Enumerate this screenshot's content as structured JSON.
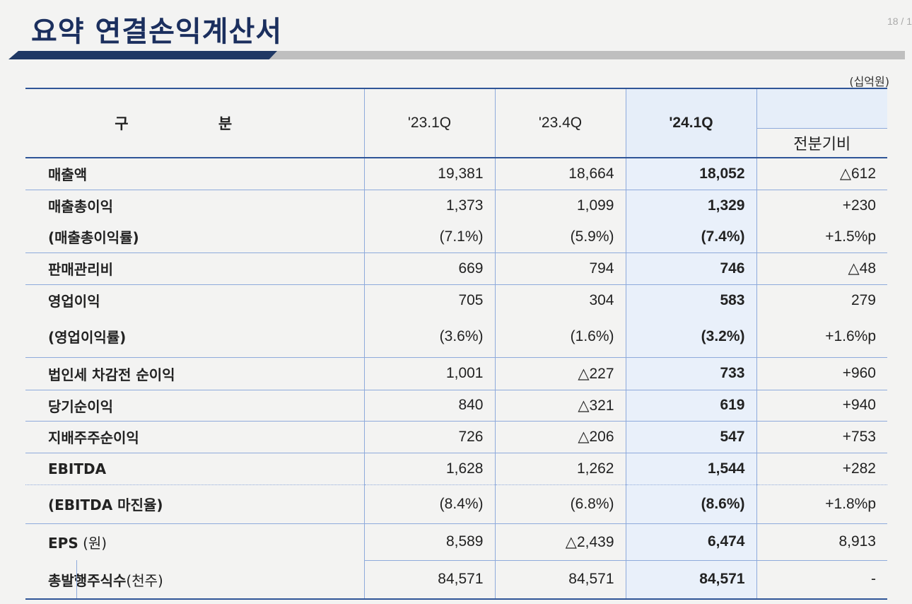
{
  "header": {
    "title": "요약 연결손익계산서",
    "page_number": "18 / 1",
    "unit": "(십억원)"
  },
  "table": {
    "header": {
      "category": "구 분",
      "periods": [
        "'23.1Q",
        "'23.4Q",
        "'24.1Q"
      ],
      "change": "전분기비"
    },
    "rows": [
      {
        "label": "매출액",
        "v1": "19,381",
        "v2": "18,664",
        "v3": "18,052",
        "chg": "△612"
      },
      {
        "label": "매출총이익",
        "v1": "1,373",
        "v2": "1,099",
        "v3": "1,329",
        "chg": "+230"
      },
      {
        "label": "(매출총이익률)",
        "v1": "(7.1%)",
        "v2": "(5.9%)",
        "v3": "(7.4%)",
        "chg": "+1.5%p"
      },
      {
        "label": "판매관리비",
        "v1": "669",
        "v2": "794",
        "v3": "746",
        "chg": "△48"
      },
      {
        "label": "영업이익",
        "v1": "705",
        "v2": "304",
        "v3": "583",
        "chg": "279"
      },
      {
        "label": "(영업이익률)",
        "v1": "(3.6%)",
        "v2": "(1.6%)",
        "v3": "(3.2%)",
        "chg": "+1.6%p"
      },
      {
        "label": "법인세 차감전 순이익",
        "v1": "1,001",
        "v2": "△227",
        "v3": "733",
        "chg": "+960"
      },
      {
        "label": "당기순이익",
        "v1": "840",
        "v2": "△321",
        "v3": "619",
        "chg": "+940"
      },
      {
        "label": "지배주주순이익",
        "v1": "726",
        "v2": "△206",
        "v3": "547",
        "chg": "+753"
      },
      {
        "label": "EBITDA",
        "v1": "1,628",
        "v2": "1,262",
        "v3": "1,544",
        "chg": "+282"
      },
      {
        "label": "(EBITDA 마진율)",
        "v1": "(8.4%)",
        "v2": "(6.8%)",
        "v3": "(8.6%)",
        "chg": "+1.8%p"
      },
      {
        "label": "EPS",
        "label_unit": " (원)",
        "v1": "8,589",
        "v2": "△2,439",
        "v3": "6,474",
        "chg": "8,913"
      },
      {
        "label": "총발행주식수",
        "label_unit": "(천주)",
        "v1": "84,571",
        "v2": "84,571",
        "v3": "84,571",
        "chg": "-"
      }
    ]
  },
  "colors": {
    "title": "#1b2f5e",
    "bar_navy": "#1f3864",
    "bar_gray": "#bfbfbf",
    "rule": "#2f5597",
    "grid": "#8eaadb",
    "highlight": "#e9f0fa"
  }
}
